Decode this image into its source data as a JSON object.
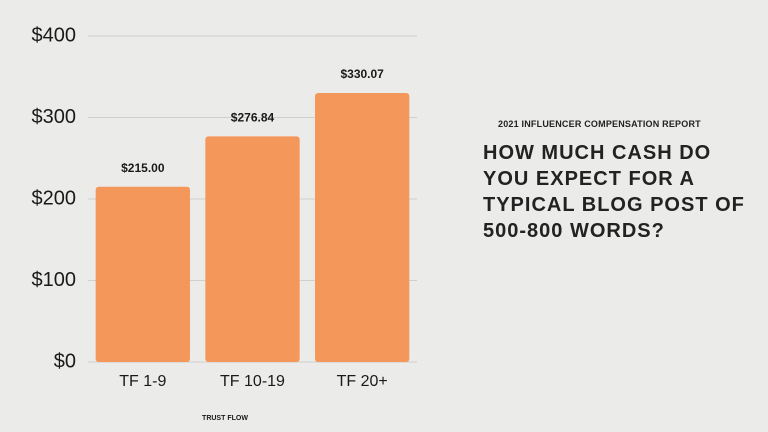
{
  "chart_data": {
    "type": "bar",
    "title": "HOW MUCH CASH DO YOU EXPECT FOR A TYPICAL BLOG POST OF 500-800 WORDS?",
    "subtitle": "2021 INFLUENCER COMPENSATION REPORT",
    "x_label": "TRUST FLOW",
    "categories": [
      "TF 1-9",
      "TF 10-19",
      "TF 20+"
    ],
    "values": [
      215.0,
      276.84,
      330.07
    ],
    "value_labels": [
      "$215.00",
      "$276.84",
      "$330.07"
    ],
    "color": "#f4975a",
    "ylim": [
      0,
      400
    ],
    "yticks": [
      {
        "value": 0,
        "label": "$0"
      },
      {
        "value": 100,
        "label": "$100"
      },
      {
        "value": 200,
        "label": "$200"
      },
      {
        "value": 300,
        "label": "$300"
      },
      {
        "value": 400,
        "label": "$400"
      }
    ],
    "grid": true
  }
}
